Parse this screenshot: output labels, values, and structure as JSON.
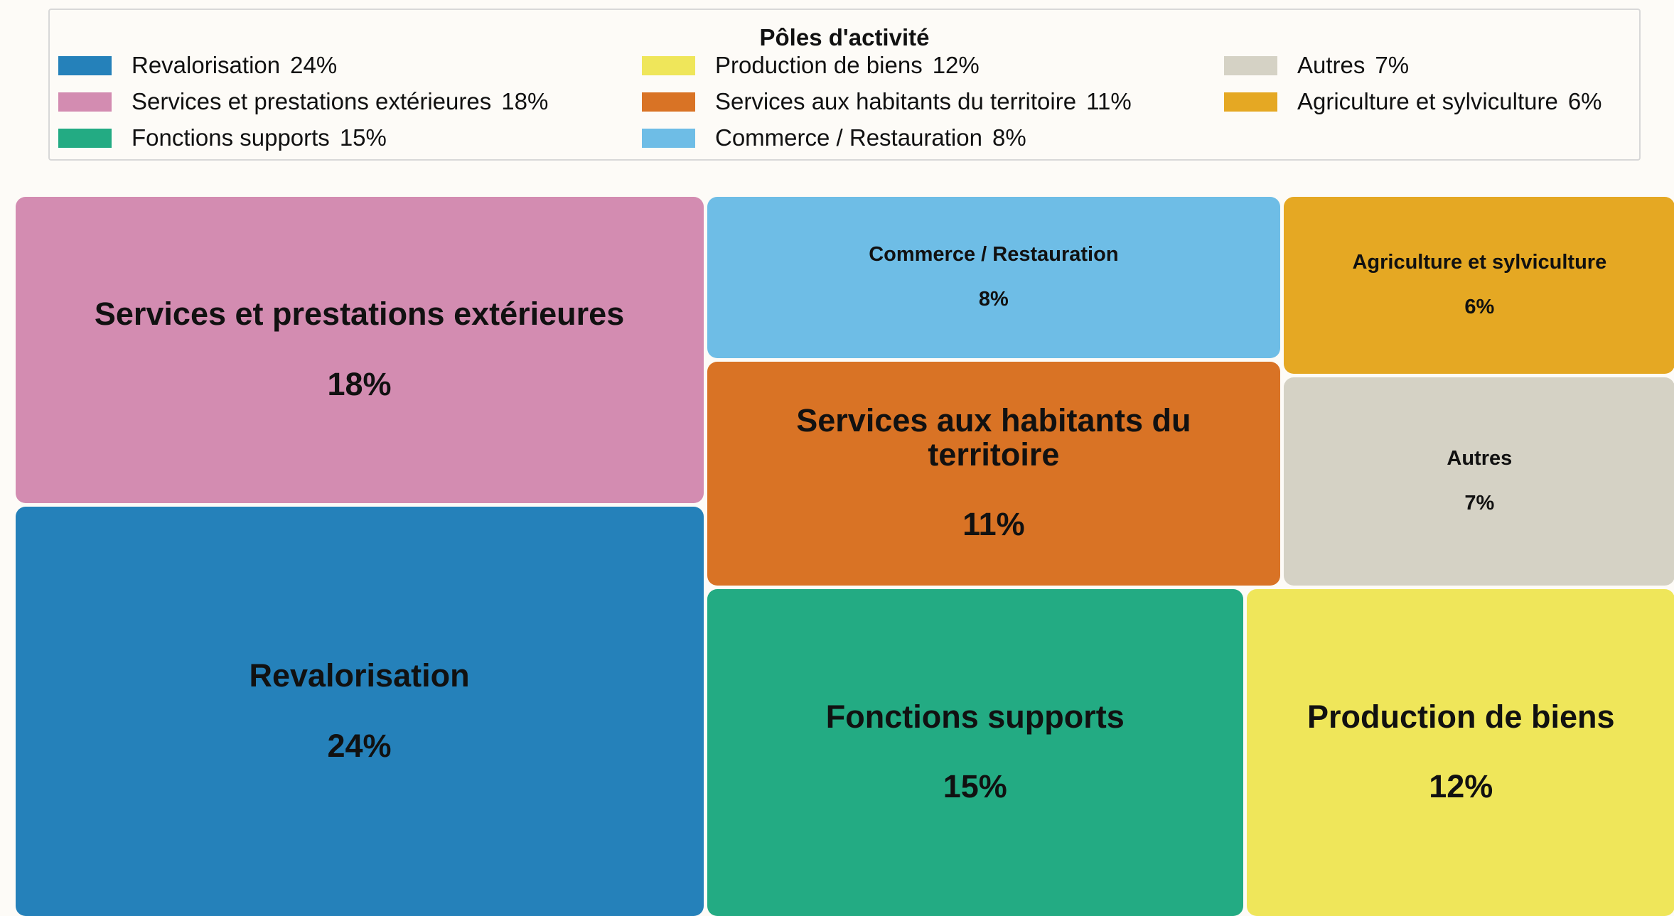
{
  "chart_data": {
    "type": "treemap",
    "legend_title": "Pôles d'activité",
    "categories": [
      "Revalorisation",
      "Services et prestations extérieures",
      "Fonctions supports",
      "Production de biens",
      "Services aux habitants du territoire",
      "Commerce / Restauration",
      "Autres",
      "Agriculture et sylviculture"
    ],
    "values": [
      24,
      18,
      15,
      12,
      11,
      8,
      7,
      6
    ],
    "value_labels": [
      "24%",
      "18%",
      "15%",
      "12%",
      "11%",
      "8%",
      "7%",
      "6%"
    ],
    "colors": [
      "#2581ba",
      "#d38cb1",
      "#23ab83",
      "#efe65a",
      "#d97325",
      "#6ebde6",
      "#d5d2c5",
      "#e5a823"
    ],
    "legend": "top"
  }
}
